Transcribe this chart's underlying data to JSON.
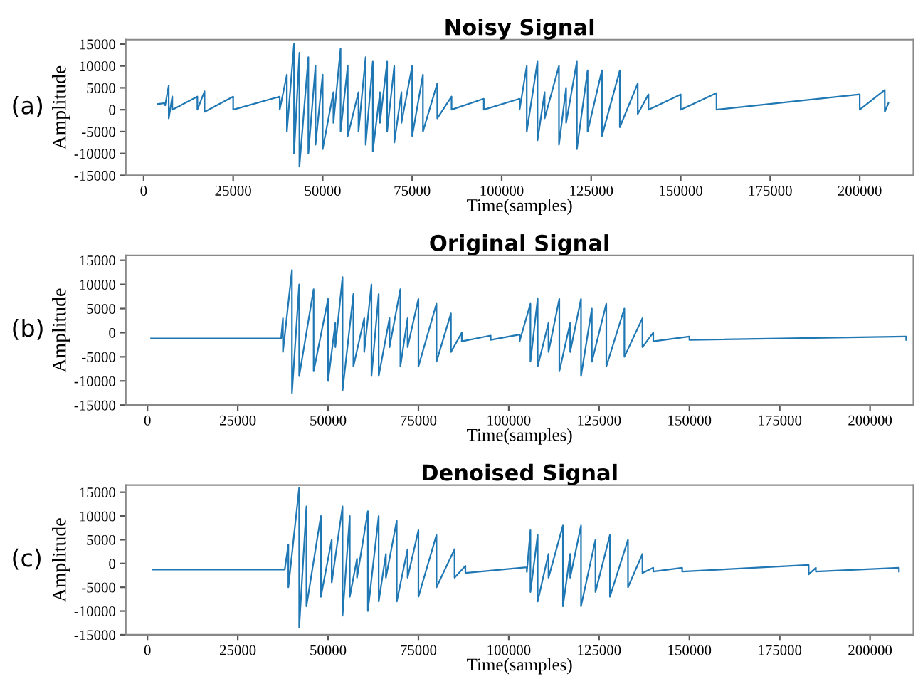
{
  "chart_data": [
    {
      "type": "line",
      "title": "Noisy Signal",
      "xlabel": "Time(samples)",
      "ylabel": "Amplitude",
      "annotations": [
        "(a)"
      ],
      "xlim": [
        -5000,
        215000
      ],
      "ylim": [
        -15000,
        16000
      ],
      "xticks": [
        0,
        25000,
        50000,
        75000,
        100000,
        125000,
        150000,
        175000,
        200000
      ],
      "yticks": [
        -15000,
        -10000,
        -5000,
        0,
        5000,
        10000,
        15000
      ],
      "grid": false,
      "legend": false,
      "series": [
        {
          "color": "#1f77b4",
          "x": [
            4000,
            6000,
            6000,
            7000,
            7000,
            8000,
            8000,
            15000,
            15000,
            17000,
            17000,
            25000,
            25000,
            38000,
            38000,
            40000,
            40000,
            42000,
            42000,
            43500,
            43500,
            46000,
            46000,
            48000,
            48000,
            50000,
            50000,
            53000,
            53000,
            55000,
            55000,
            57000,
            57000,
            60000,
            60000,
            62000,
            62000,
            64000,
            64000,
            66000,
            66000,
            68000,
            68000,
            70000,
            70000,
            72000,
            72000,
            75000,
            75000,
            78000,
            78000,
            82000,
            82000,
            86000,
            86000,
            95000,
            95000,
            105000,
            105000,
            107000,
            107000,
            110000,
            110000,
            112000,
            112000,
            116000,
            116000,
            118000,
            118000,
            121000,
            121000,
            124000,
            124000,
            128000,
            128000,
            133000,
            133000,
            138000,
            138000,
            141000,
            141000,
            150000,
            150000,
            160000,
            160000,
            200000,
            200000,
            207000,
            207000,
            208000
          ],
          "values": [
            1300,
            1500,
            1000,
            5500,
            -2000,
            3000,
            0,
            3000,
            0,
            4200,
            -500,
            3000,
            0,
            3000,
            0,
            8000,
            -5000,
            15000,
            -10000,
            13000,
            -13000,
            12000,
            -10000,
            10000,
            -8000,
            8000,
            -9000,
            4000,
            -3000,
            14000,
            -5000,
            10000,
            -6000,
            4000,
            -5000,
            12000,
            -8000,
            11000,
            -9500,
            4000,
            -3000,
            11000,
            -5000,
            10000,
            -7500,
            4000,
            -3000,
            10000,
            -6000,
            8000,
            -5000,
            6000,
            -2000,
            3000,
            0,
            2500,
            0,
            2500,
            0,
            10000,
            -5000,
            11000,
            -7000,
            4000,
            -2000,
            10000,
            -8000,
            5000,
            -3000,
            11000,
            -9000,
            9000,
            -5000,
            9000,
            -6000,
            9000,
            -4000,
            6000,
            -1000,
            3500,
            0,
            3500,
            0,
            3800,
            0,
            3500,
            0,
            4500,
            -500,
            1500
          ]
        }
      ]
    },
    {
      "type": "line",
      "title": "Original Signal",
      "xlabel": "Time(samples)",
      "ylabel": "Amplitude",
      "annotations": [
        "(b)"
      ],
      "xlim": [
        -6000,
        212000
      ],
      "ylim": [
        -15000,
        16000
      ],
      "xticks": [
        0,
        25000,
        50000,
        75000,
        100000,
        125000,
        150000,
        175000,
        200000
      ],
      "yticks": [
        -15000,
        -10000,
        -5000,
        0,
        5000,
        10000,
        15000
      ],
      "grid": false,
      "legend": false,
      "series": [
        {
          "color": "#1f77b4",
          "x": [
            1000,
            37000,
            37500,
            37500,
            40000,
            40000,
            42000,
            42000,
            46000,
            46000,
            50000,
            50000,
            52000,
            52000,
            54000,
            54000,
            57000,
            57000,
            60000,
            60000,
            62000,
            62000,
            64000,
            64000,
            67000,
            67000,
            70000,
            70000,
            72000,
            72000,
            75000,
            75000,
            80000,
            80000,
            84000,
            84000,
            87000,
            87000,
            95000,
            95000,
            103000,
            103000,
            106000,
            106000,
            108000,
            108000,
            111000,
            111000,
            114000,
            114000,
            117000,
            117000,
            120000,
            120000,
            123000,
            123000,
            127000,
            127000,
            132000,
            132000,
            137000,
            137000,
            140000,
            140000,
            150000,
            150000,
            210000,
            210000
          ],
          "values": [
            -1200,
            -1200,
            3000,
            -4000,
            13000,
            -12500,
            10000,
            -9000,
            9000,
            -8000,
            7000,
            -10000,
            2000,
            -3000,
            11500,
            -12000,
            8000,
            -7000,
            3000,
            -4000,
            10000,
            -9000,
            8000,
            -9000,
            3000,
            -3000,
            9000,
            -7000,
            3000,
            -3000,
            7000,
            -7000,
            6000,
            -6000,
            4000,
            -4000,
            0,
            -1800,
            -600,
            -1500,
            -400,
            -1800,
            6000,
            -6000,
            7000,
            -7000,
            2000,
            -4000,
            7000,
            -8000,
            2000,
            -4000,
            7000,
            -9000,
            5000,
            -6000,
            6000,
            -7000,
            5000,
            -5000,
            3000,
            -3000,
            0,
            -1800,
            -800,
            -1500,
            -800,
            -1500
          ]
        }
      ]
    },
    {
      "type": "line",
      "title": "Denoised Signal",
      "xlabel": "Time(samples)",
      "ylabel": "Amplitude",
      "annotations": [
        "(c)"
      ],
      "xlim": [
        -6000,
        212000
      ],
      "ylim": [
        -15000,
        16500
      ],
      "xticks": [
        0,
        25000,
        50000,
        75000,
        100000,
        125000,
        150000,
        175000,
        200000
      ],
      "yticks": [
        -15000,
        -10000,
        -5000,
        0,
        5000,
        10000,
        15000
      ],
      "grid": false,
      "legend": false,
      "series": [
        {
          "color": "#1f77b4",
          "x": [
            1500,
            38000,
            39000,
            39000,
            42000,
            42000,
            44000,
            44000,
            48000,
            48000,
            51000,
            51000,
            54000,
            54000,
            56000,
            56000,
            58000,
            58000,
            61000,
            61000,
            64000,
            64000,
            66000,
            66000,
            69000,
            69000,
            72000,
            72000,
            75000,
            75000,
            80000,
            80000,
            85000,
            85000,
            88000,
            88000,
            105000,
            105000,
            106000,
            106000,
            108000,
            108000,
            111000,
            111000,
            115000,
            115000,
            117000,
            117000,
            120000,
            120000,
            124000,
            124000,
            128000,
            128000,
            133000,
            133000,
            137000,
            137000,
            140000,
            140000,
            148000,
            148000,
            183000,
            183000,
            185000,
            185000,
            208000,
            208000
          ],
          "values": [
            -1300,
            -1300,
            4000,
            -5000,
            16000,
            -13500,
            12000,
            -9000,
            10000,
            -7000,
            5000,
            -4000,
            12000,
            -11000,
            10000,
            -7000,
            1000,
            -3000,
            11000,
            -10000,
            10000,
            -8000,
            2000,
            -3000,
            9000,
            -8000,
            3000,
            -3000,
            7000,
            -7000,
            6000,
            -5000,
            3000,
            -3000,
            -500,
            -2000,
            -800,
            -1800,
            7000,
            -6000,
            6000,
            -8000,
            2000,
            -3000,
            8000,
            -9000,
            2000,
            -3000,
            8000,
            -9000,
            5000,
            -6000,
            6000,
            -7000,
            5000,
            -5000,
            2000,
            -2000,
            -900,
            -1700,
            -900,
            -1700,
            -300,
            -2300,
            -900,
            -1700,
            -900,
            -1700
          ]
        }
      ]
    }
  ]
}
